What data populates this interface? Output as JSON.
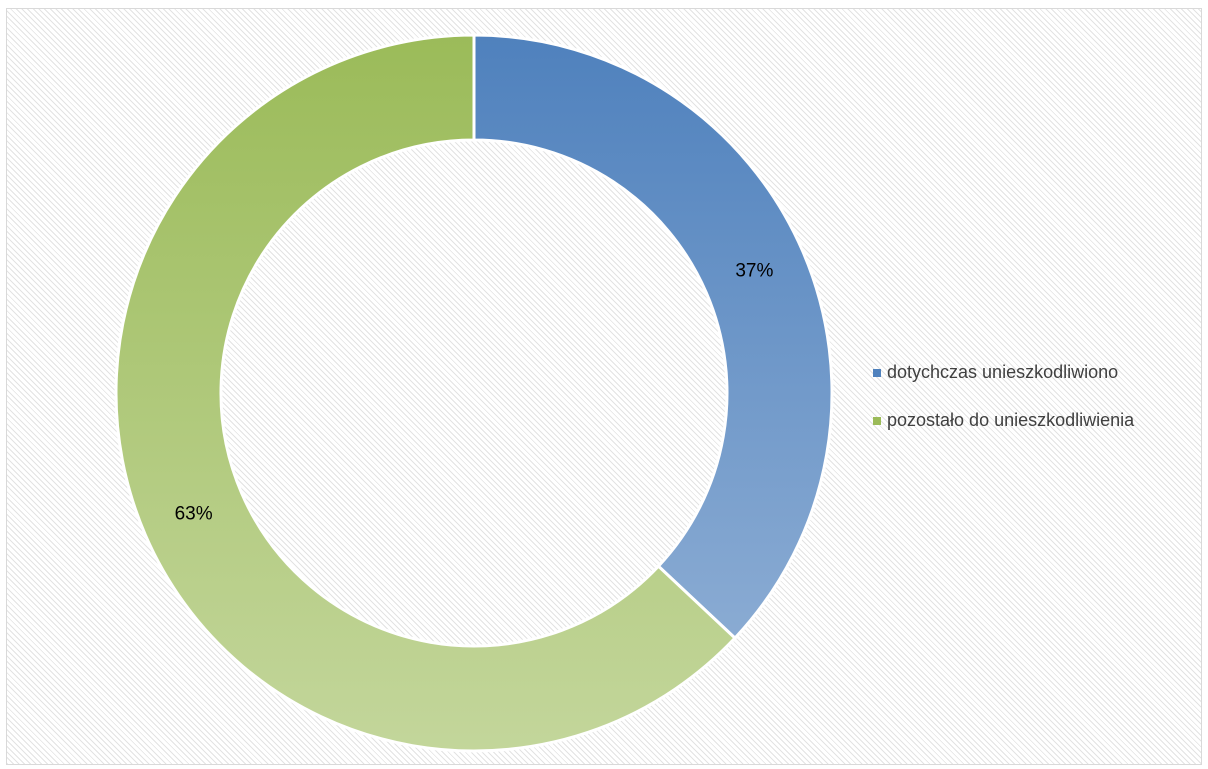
{
  "chart_data": {
    "type": "pie",
    "variant": "doughnut",
    "title": "",
    "categories": [
      "dotychczas unieszkodliwiono",
      "pozostało do unieszkodliwienia"
    ],
    "values": [
      37,
      63
    ],
    "data_labels": [
      "37%",
      "63%"
    ],
    "colors": [
      "#4f81bd",
      "#9bbb59"
    ],
    "colors_light": [
      "#95b3d7",
      "#c3d69b"
    ],
    "legend_position": "right",
    "background": "diagonal-hatch"
  }
}
